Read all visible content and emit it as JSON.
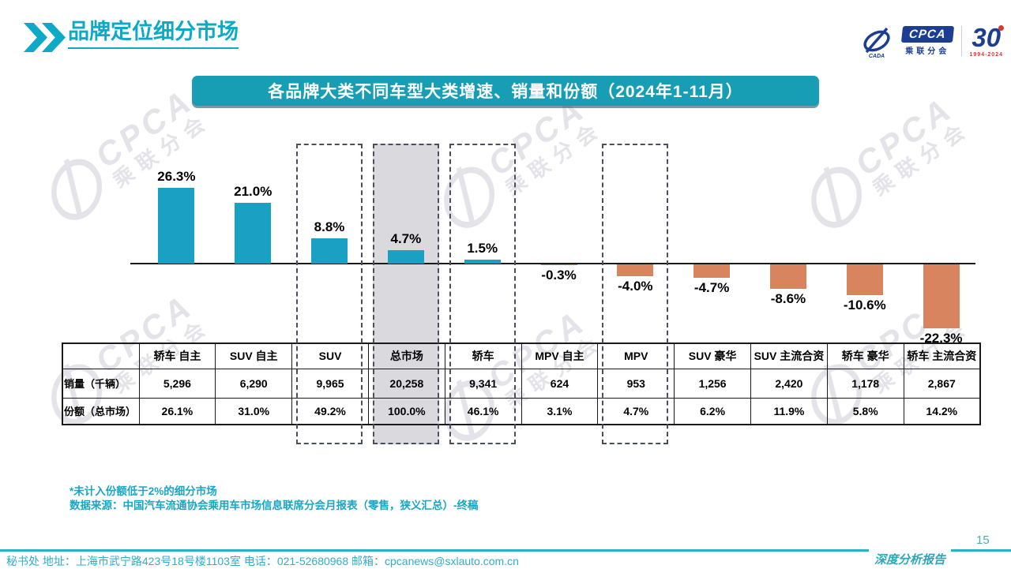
{
  "page": {
    "title": "品牌定位细分市场",
    "page_number": "15",
    "report_label": "深度分析报告"
  },
  "header_logos": {
    "cpca_text": "CPCA",
    "cpca_sub": "乘联分会",
    "anniv_number": "30",
    "anniv_years": "1994-2024"
  },
  "banner": {
    "title": "各品牌大类不同车型大类增速、销量和份额（2024年1-11月）"
  },
  "chart_data": {
    "type": "bar",
    "title": "各品牌大类不同车型大类增速、销量和份额（2024年1-11月）",
    "categories": [
      "轿车 自主",
      "SUV 自主",
      "SUV",
      "总市场",
      "轿车",
      "MPV 自主",
      "MPV",
      "SUV 豪华",
      "SUV 主流合资",
      "轿车 豪华",
      "轿车 主流合资"
    ],
    "series": [
      {
        "name": "增速",
        "unit": "%",
        "values": [
          26.3,
          21.0,
          8.8,
          4.7,
          1.5,
          -0.3,
          -4.0,
          -4.7,
          -8.6,
          -10.6,
          -22.3
        ]
      }
    ],
    "data_labels": [
      "26.3%",
      "21.0%",
      "8.8%",
      "4.7%",
      "1.5%",
      "-0.3%",
      "-4.0%",
      "-4.7%",
      "-8.6%",
      "-10.6%",
      "-22.3%"
    ],
    "highlighted_categories_dashed": [
      "SUV",
      "总市场",
      "轿车",
      "MPV"
    ],
    "highlighted_category_shaded": "总市场",
    "positive_color": "#1aa0c2",
    "negative_color": "#d8845f",
    "ylim": [
      -25,
      30
    ],
    "grid": false,
    "legend": "none"
  },
  "table": {
    "columns": [
      "轿车 自主",
      "SUV 自主",
      "SUV",
      "总市场",
      "轿车",
      "MPV 自主",
      "MPV",
      "SUV 豪华",
      "SUV 主流合资",
      "轿车 豪华",
      "轿车 主流合资"
    ],
    "row_headers": [
      "销量（千辆）",
      "份额（总市场）"
    ],
    "sales": [
      "5,296",
      "6,290",
      "9,965",
      "20,258",
      "9,341",
      "624",
      "953",
      "1,256",
      "2,420",
      "1,178",
      "2,867"
    ],
    "share": [
      "26.1%",
      "31.0%",
      "49.2%",
      "100.0%",
      "46.1%",
      "3.1%",
      "4.7%",
      "6.2%",
      "11.9%",
      "5.8%",
      "14.2%"
    ]
  },
  "notes": {
    "asterisk": "*未计入份额低于2%的细分市场",
    "source": "数据来源：中国汽车流通协会乘用车市场信息联席分会月报表（零售，狭义汇总）-终稿"
  },
  "footer": {
    "contact": "秘书处  地址：上海市武宁路423号18号楼1103室 电话：021-52680968   邮箱：cpcanews@sxlauto.com.cn"
  },
  "watermark": {
    "cpca": "CPCA",
    "sub": "乘联分会",
    "cada": "CADA"
  },
  "colors": {
    "teal_accent": "#0da9c7",
    "banner_bg": "#179eb4",
    "positive_bar": "#1aa0c2",
    "negative_bar": "#d8845f",
    "shade_gray": "#d9d9de",
    "dash_border": "#4a4f5e",
    "logo_blue": "#1c3e92",
    "logo_red": "#d23b2f"
  }
}
